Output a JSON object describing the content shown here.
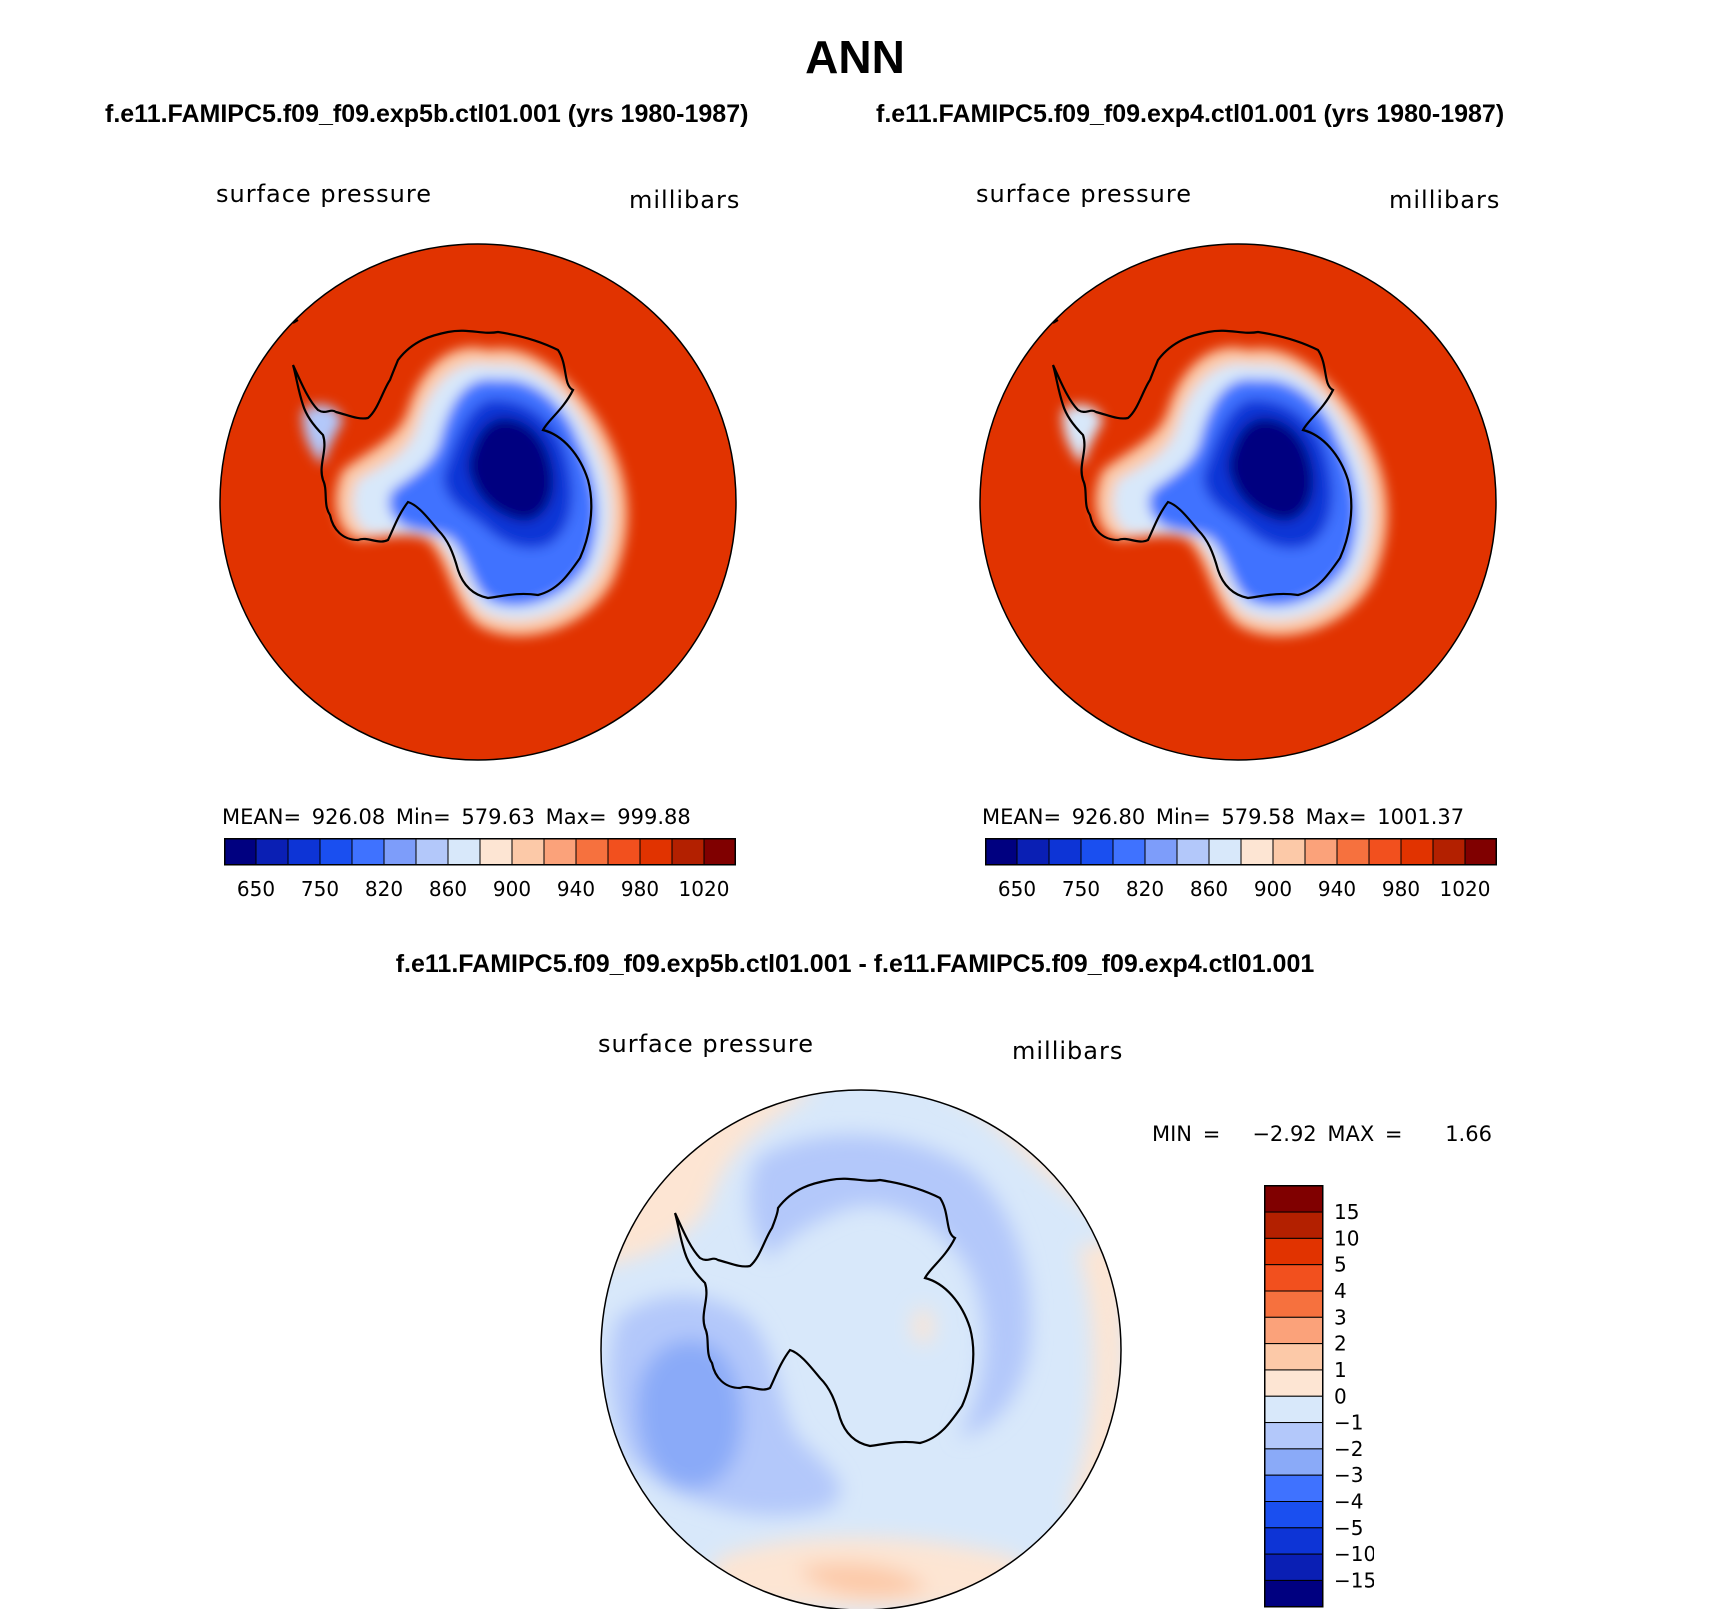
{
  "title": "ANN",
  "panels": [
    {
      "case": "f.e11.FAMIPC5.f09_f09.exp5b.ctl01.001 (yrs 1980-1987)",
      "field": "surface pressure",
      "units": "millibars",
      "stats": "MEAN= 926.08   Min= 579.63   Max= 999.88"
    },
    {
      "case": "f.e11.FAMIPC5.f09_f09.exp4.ctl01.001 (yrs 1980-1987)",
      "field": "surface pressure",
      "units": "millibars",
      "stats": "MEAN= 926.80   Min= 579.58   Max= 1001.37"
    }
  ],
  "diff_panel": {
    "title": "f.e11.FAMIPC5.f09_f09.exp5b.ctl01.001 - f.e11.FAMIPC5.f09_f09.exp4.ctl01.001",
    "field": "surface pressure",
    "units": "millibars",
    "stats": "MIN =   −2.92 MAX =    1.66"
  },
  "colorbar_abs": {
    "colors": [
      "#000080",
      "#0a1fb4",
      "#0d34d6",
      "#1a4ff0",
      "#3f72ff",
      "#7d9dfa",
      "#b3c8fa",
      "#d8e8fa",
      "#fde5d3",
      "#fcc9a8",
      "#fba27a",
      "#f6713e",
      "#f2501e",
      "#e13300",
      "#b32000",
      "#800000"
    ],
    "labels": [
      "650",
      "750",
      "820",
      "860",
      "900",
      "940",
      "980",
      "1020"
    ]
  },
  "colorbar_diff": {
    "colors": [
      "#800000",
      "#b32000",
      "#e13300",
      "#f2501e",
      "#f6713e",
      "#fba27a",
      "#fcc9a8",
      "#fde5d3",
      "#d8e8fa",
      "#b3c8fa",
      "#8aaaf8",
      "#3f72ff",
      "#1a4ff0",
      "#0d34d6",
      "#0a1fb4",
      "#000080"
    ],
    "labels": [
      "15",
      "10",
      "5",
      "4",
      "3",
      "2",
      "1",
      "0",
      "−1",
      "−2",
      "−3",
      "−4",
      "−5",
      "−10",
      "−15"
    ]
  }
}
